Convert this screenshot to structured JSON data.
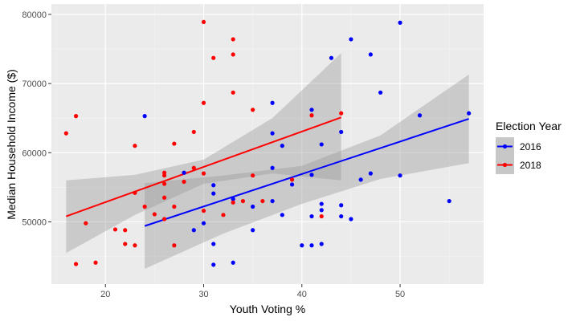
{
  "chart_data": {
    "type": "scatter",
    "xlabel": "Youth Voting %",
    "ylabel": "Median Household Income ($)",
    "xlim": [
      14.5,
      58.5
    ],
    "ylim": [
      41000,
      81500
    ],
    "x_ticks": [
      20,
      30,
      40,
      50
    ],
    "y_ticks": [
      50000,
      60000,
      70000,
      80000
    ],
    "x_tick_labels": [
      "20",
      "30",
      "40",
      "50"
    ],
    "y_tick_labels": [
      "50000",
      "60000",
      "70000",
      "80000"
    ],
    "grid": true,
    "legend": {
      "title": "Election Year",
      "position": "right"
    },
    "series": [
      {
        "name": "2016",
        "color": "#0000ff",
        "points": [
          [
            24,
            65300
          ],
          [
            28,
            57100
          ],
          [
            29,
            48800
          ],
          [
            30,
            49800
          ],
          [
            31,
            46800
          ],
          [
            31,
            43800
          ],
          [
            31,
            55300
          ],
          [
            31,
            54100
          ],
          [
            33,
            44100
          ],
          [
            33,
            53300
          ],
          [
            35,
            48800
          ],
          [
            35,
            52200
          ],
          [
            37,
            67200
          ],
          [
            37,
            62800
          ],
          [
            37,
            57800
          ],
          [
            37,
            53000
          ],
          [
            38,
            61000
          ],
          [
            38,
            51000
          ],
          [
            39,
            55400
          ],
          [
            40,
            46600
          ],
          [
            41,
            66200
          ],
          [
            41,
            56800
          ],
          [
            41,
            50800
          ],
          [
            41,
            46600
          ],
          [
            42,
            61200
          ],
          [
            42,
            52600
          ],
          [
            42,
            51700
          ],
          [
            42,
            46800
          ],
          [
            43,
            73700
          ],
          [
            44,
            63000
          ],
          [
            44,
            52400
          ],
          [
            44,
            50800
          ],
          [
            45,
            76400
          ],
          [
            45,
            50400
          ],
          [
            46,
            56100
          ],
          [
            47,
            74200
          ],
          [
            47,
            57000
          ],
          [
            48,
            68700
          ],
          [
            50,
            78800
          ],
          [
            50,
            56700
          ],
          [
            52,
            65400
          ],
          [
            55,
            53000
          ],
          [
            57,
            65700
          ]
        ],
        "trend": {
          "x": [
            24,
            57
          ],
          "y": [
            49400,
            64900
          ]
        },
        "band": {
          "x": [
            24,
            32,
            40,
            48,
            57
          ],
          "upper": [
            55600,
            56700,
            58100,
            62500,
            71300
          ],
          "lower": [
            43200,
            48300,
            52600,
            56200,
            58500
          ]
        }
      },
      {
        "name": "2018",
        "color": "#ff0000",
        "points": [
          [
            16,
            62800
          ],
          [
            17,
            65300
          ],
          [
            17,
            43900
          ],
          [
            18,
            49800
          ],
          [
            19,
            44100
          ],
          [
            21,
            48900
          ],
          [
            22,
            48800
          ],
          [
            22,
            46800
          ],
          [
            23,
            61000
          ],
          [
            23,
            54200
          ],
          [
            23,
            46600
          ],
          [
            24,
            52200
          ],
          [
            25,
            51100
          ],
          [
            26,
            57100
          ],
          [
            26,
            56700
          ],
          [
            26,
            55500
          ],
          [
            26,
            53500
          ],
          [
            26,
            50400
          ],
          [
            27,
            61300
          ],
          [
            27,
            52200
          ],
          [
            27,
            46600
          ],
          [
            28,
            55800
          ],
          [
            29,
            63000
          ],
          [
            29,
            57800
          ],
          [
            30,
            78900
          ],
          [
            30,
            67200
          ],
          [
            30,
            57000
          ],
          [
            30,
            51600
          ],
          [
            31,
            73700
          ],
          [
            32,
            51000
          ],
          [
            33,
            76400
          ],
          [
            33,
            74200
          ],
          [
            33,
            68700
          ],
          [
            33,
            52800
          ],
          [
            34,
            53000
          ],
          [
            35,
            66200
          ],
          [
            35,
            56700
          ],
          [
            36,
            53000
          ],
          [
            39,
            56100
          ],
          [
            41,
            65400
          ],
          [
            42,
            50800
          ],
          [
            44,
            65700
          ]
        ],
        "trend": {
          "x": [
            16,
            44
          ],
          "y": [
            50800,
            65100
          ]
        },
        "band": {
          "x": [
            16,
            23,
            30,
            37,
            44
          ],
          "upper": [
            56000,
            56800,
            59000,
            65000,
            74400
          ],
          "lower": [
            45500,
            51000,
            55500,
            57000,
            56000
          ]
        }
      }
    ]
  }
}
